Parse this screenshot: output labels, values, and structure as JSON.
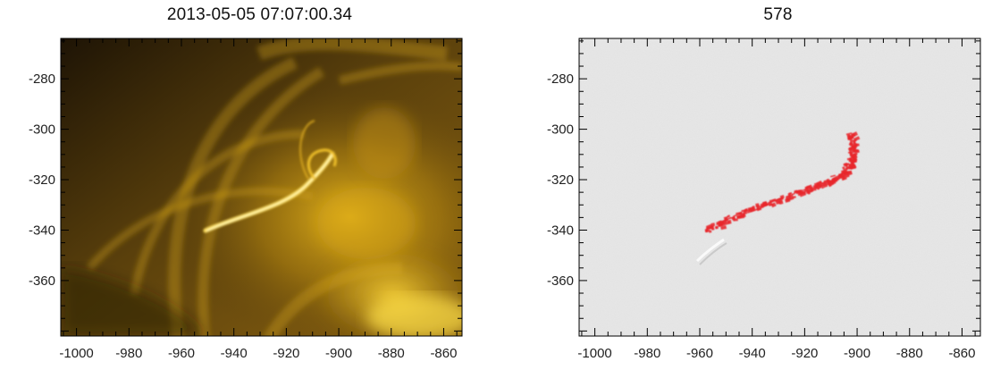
{
  "left_panel": {
    "title": "2013-05-05 07:07:00.34",
    "x_ticks": [
      "-1000",
      "-980",
      "-960",
      "-940",
      "-920",
      "-900",
      "-880",
      "-860"
    ],
    "y_ticks": [
      "-280",
      "-300",
      "-320",
      "-340",
      "-360"
    ],
    "colormap": "gold",
    "colors": {
      "dark": "#2a1c06",
      "mid": "#9a6f10",
      "bright": "#f2c41a",
      "highlight": "#fff2a0"
    }
  },
  "right_panel": {
    "title": "578",
    "x_ticks": [
      "-1000",
      "-980",
      "-960",
      "-940",
      "-920",
      "-900",
      "-880",
      "-860"
    ],
    "y_ticks": [
      "-280",
      "-300",
      "-320",
      "-340",
      "-360"
    ],
    "colors": {
      "background": "#e3e3e3",
      "overlay": "#e8262b"
    }
  },
  "chart_data": [
    {
      "type": "image",
      "title": "2013-05-05 07:07:00.34",
      "xlim": [
        -1006,
        -853
      ],
      "ylim": [
        -382,
        -264
      ],
      "x_ticks": [
        -1000,
        -980,
        -960,
        -940,
        -920,
        -900,
        -880,
        -860
      ],
      "y_ticks": [
        -280,
        -300,
        -320,
        -340,
        -360
      ]
    },
    {
      "type": "image",
      "title": "578",
      "xlim": [
        -1006,
        -853
      ],
      "ylim": [
        -382,
        -264
      ],
      "x_ticks": [
        -1000,
        -980,
        -960,
        -940,
        -920,
        -900,
        -880,
        -860
      ],
      "y_ticks": [
        -280,
        -300,
        -320,
        -340,
        -360
      ],
      "overlay_path": [
        [
          -958,
          -340
        ],
        [
          -950,
          -336
        ],
        [
          -940,
          -331
        ],
        [
          -930,
          -328
        ],
        [
          -920,
          -324
        ],
        [
          -912,
          -321
        ],
        [
          -906,
          -318
        ],
        [
          -903,
          -313
        ],
        [
          -902,
          -307
        ],
        [
          -903,
          -302
        ]
      ]
    }
  ]
}
